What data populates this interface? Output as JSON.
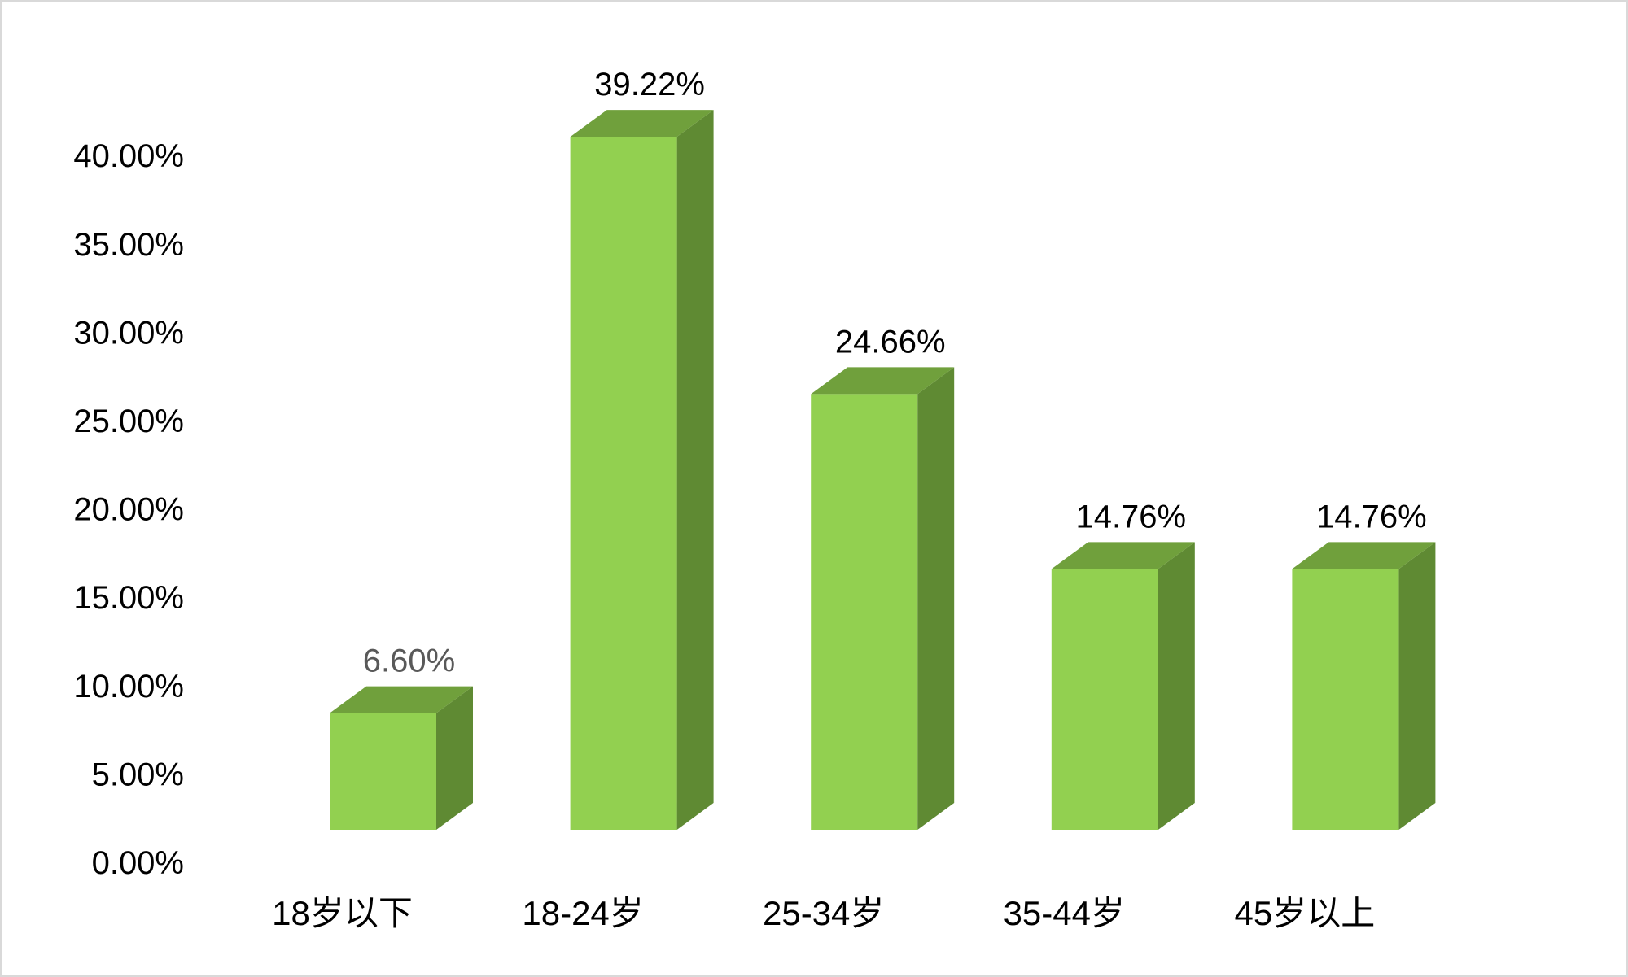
{
  "chart_data": {
    "type": "bar",
    "style": "3d-column",
    "categories": [
      "18岁以下",
      "18-24岁",
      "25-34岁",
      "35-44岁",
      "45岁以上"
    ],
    "values": [
      6.6,
      39.22,
      24.66,
      14.76,
      14.76
    ],
    "data_labels": [
      "6.60%",
      "39.22%",
      "24.66%",
      "14.76%",
      "14.76%"
    ],
    "ylim": [
      0,
      40
    ],
    "yticks": [
      "0.00%",
      "5.00%",
      "10.00%",
      "15.00%",
      "20.00%",
      "25.00%",
      "30.00%",
      "35.00%",
      "40.00%"
    ],
    "grid": false,
    "legend": "none",
    "colors": {
      "front": "#92d050",
      "top": "#70a03c",
      "side": "#5f8a33",
      "label": "#000000",
      "first_label": "#595959"
    }
  }
}
